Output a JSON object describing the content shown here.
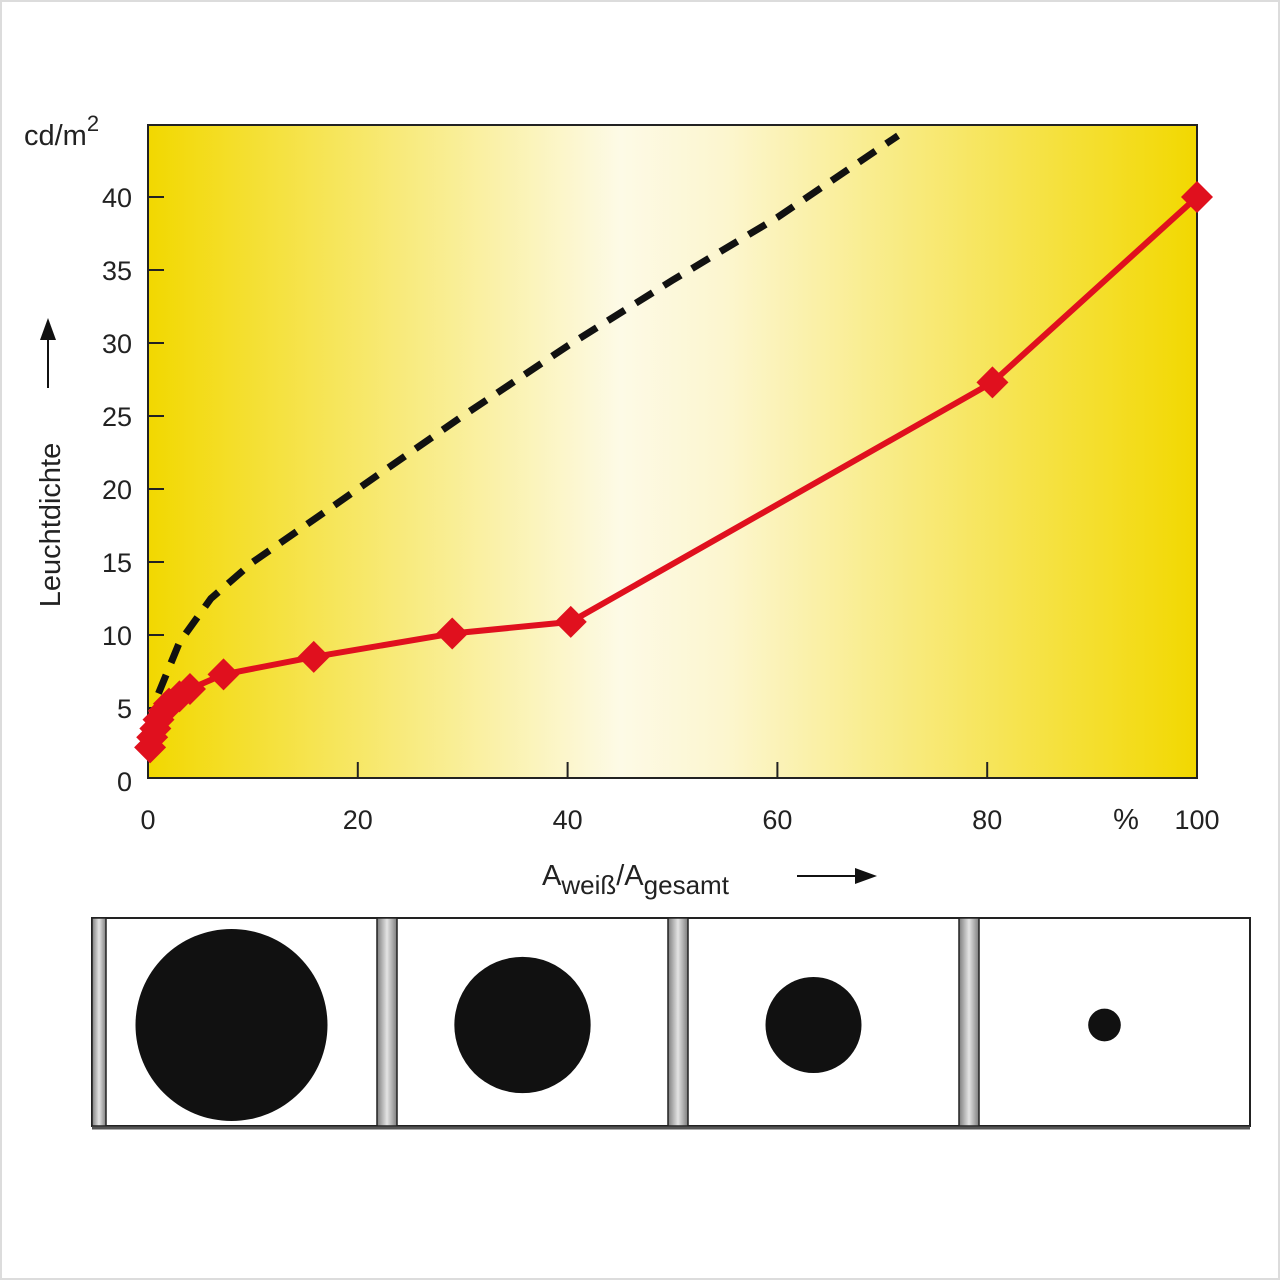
{
  "chart_data": {
    "type": "line",
    "xlabel": {
      "main": "A",
      "sub1": "weiß",
      "mid": "/A",
      "sub2": "gesamt"
    },
    "ylabel": "Leuchtdichte",
    "yunit": {
      "base": "cd/m",
      "exp": "2"
    },
    "xunit": "%",
    "xlim": [
      0,
      100
    ],
    "ylim": [
      0,
      45
    ],
    "xticks": [
      0,
      20,
      40,
      60,
      80,
      100
    ],
    "yticks": [
      0,
      5,
      10,
      15,
      20,
      25,
      30,
      35,
      40
    ],
    "grid": false,
    "series": [
      {
        "style": "solid-markers",
        "color": "#e0101e",
        "x": [
          0.2,
          0.4,
          0.7,
          1,
          1.5,
          2,
          3,
          4,
          7.2,
          15.8,
          29,
          40.3,
          80.5,
          100
        ],
        "y": [
          2.3,
          3,
          3.6,
          4.2,
          4.8,
          5.3,
          5.8,
          6.3,
          7.3,
          8.5,
          10.1,
          10.9,
          27.3,
          40
        ]
      },
      {
        "style": "dashed",
        "color": "#111111",
        "x": [
          1,
          3,
          6,
          10,
          15,
          20,
          30,
          40,
          50,
          60,
          71.5
        ],
        "y": [
          6,
          9.5,
          12.5,
          15,
          17.5,
          20,
          25,
          29.8,
          34.3,
          38.6,
          44.2
        ]
      }
    ]
  },
  "panels": [
    {
      "dot_size": 1.0
    },
    {
      "dot_size": 0.71
    },
    {
      "dot_size": 0.5
    },
    {
      "dot_size": 0.17
    }
  ]
}
